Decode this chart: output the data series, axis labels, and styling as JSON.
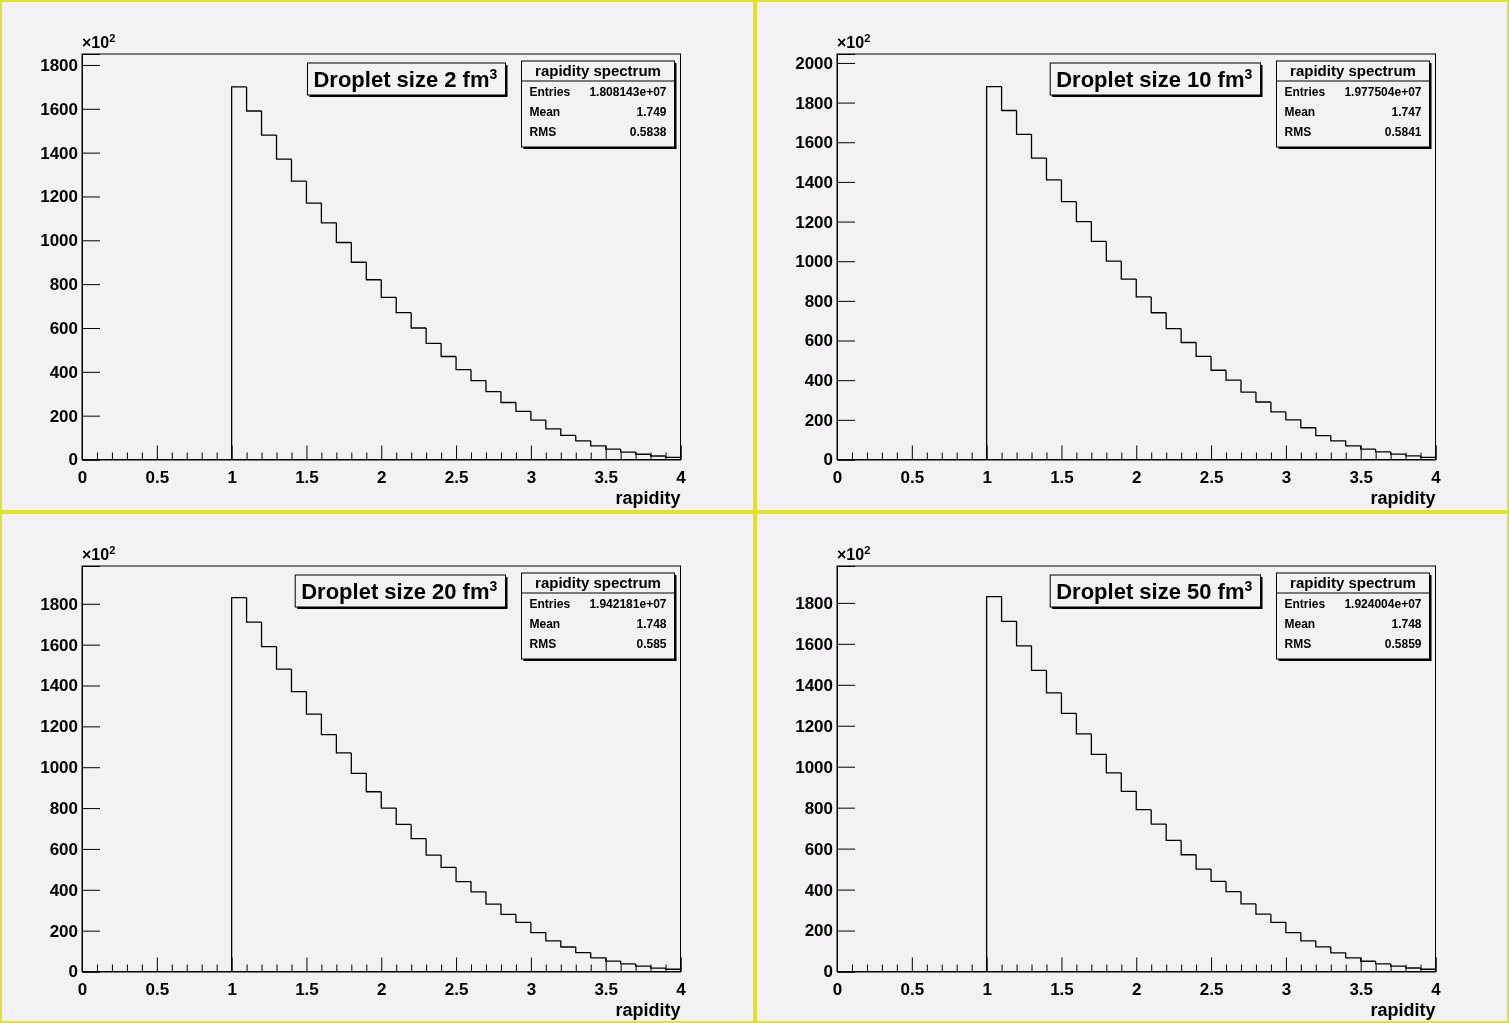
{
  "chart_data": [
    {
      "type": "histogram",
      "title": "Droplet size 2 fm$^{3}$",
      "xlabel": "rapidity",
      "bins": [
        1,
        1.1,
        1.2,
        1.3,
        1.4,
        1.5,
        1.6,
        1.7,
        1.8,
        1.9,
        2,
        2.1,
        2.2,
        2.3,
        2.4,
        2.5,
        2.6,
        2.7,
        2.8,
        2.9,
        3,
        3.1,
        3.2,
        3.3,
        3.4,
        3.5,
        3.6,
        3.7,
        3.8,
        3.9,
        4
      ],
      "series": [
        {
          "color": "#000000",
          "values": [
            1700,
            1590,
            1480,
            1370,
            1270,
            1170,
            1080,
            990,
            900,
            820,
            740,
            670,
            600,
            530,
            470,
            410,
            360,
            310,
            260,
            220,
            180,
            140,
            110,
            85,
            62,
            47,
            34,
            24,
            16,
            10
          ]
        }
      ],
      "xlim": [
        0,
        4
      ],
      "xticks": [
        0,
        {
          "value": 0.1,
          "label": null
        },
        {
          "value": 0.2,
          "label": null
        },
        {
          "value": 0.3,
          "label": null
        },
        {
          "value": 0.4,
          "label": null
        },
        0.5,
        {
          "value": 0.6,
          "label": null
        },
        {
          "value": 0.7,
          "label": null
        },
        {
          "value": 0.8,
          "label": null
        },
        {
          "value": 0.9,
          "label": null
        },
        1,
        {
          "value": 1.1,
          "label": null
        },
        {
          "value": 1.2,
          "label": null
        },
        {
          "value": 1.3,
          "label": null
        },
        {
          "value": 1.4,
          "label": null
        },
        1.5,
        {
          "value": 1.6,
          "label": null
        },
        {
          "value": 1.7,
          "label": null
        },
        {
          "value": 1.8,
          "label": null
        },
        {
          "value": 1.9,
          "label": null
        },
        2,
        {
          "value": 2.1,
          "label": null
        },
        {
          "value": 2.2,
          "label": null
        },
        {
          "value": 2.3,
          "label": null
        },
        {
          "value": 2.4,
          "label": null
        },
        2.5,
        {
          "value": 2.6,
          "label": null
        },
        {
          "value": 2.7,
          "label": null
        },
        {
          "value": 2.8,
          "label": null
        },
        {
          "value": 2.9,
          "label": null
        },
        3,
        {
          "value": 3.1,
          "label": null
        },
        {
          "value": 3.2,
          "label": null
        },
        {
          "value": 3.3,
          "label": null
        },
        {
          "value": 3.4,
          "label": null
        },
        3.5,
        {
          "value": 3.6,
          "label": null
        },
        {
          "value": 3.7,
          "label": null
        },
        {
          "value": 3.8,
          "label": null
        },
        {
          "value": 3.9,
          "label": null
        },
        4
      ],
      "ylim": [
        0,
        1850
      ],
      "yticks": [
        0,
        200,
        400,
        600,
        800,
        1000,
        1200,
        1400,
        1600,
        1800
      ],
      "annotations": [
        "×10$^{2}$",
        "rapidity spectrum",
        "Entries",
        "1.808143e+07",
        "Mean",
        "1.749",
        "RMS",
        "0.5838"
      ]
    },
    {
      "type": "histogram",
      "title": "Droplet size 10 fm$^{3}$",
      "xlabel": "rapidity",
      "bins": [
        1,
        1.1,
        1.2,
        1.3,
        1.4,
        1.5,
        1.6,
        1.7,
        1.8,
        1.9,
        2,
        2.1,
        2.2,
        2.3,
        2.4,
        2.5,
        2.6,
        2.7,
        2.8,
        2.9,
        3,
        3.1,
        3.2,
        3.3,
        3.4,
        3.5,
        3.6,
        3.7,
        3.8,
        3.9,
        4
      ],
      "series": [
        {
          "color": "#000000",
          "values": [
            1880,
            1760,
            1640,
            1520,
            1410,
            1300,
            1200,
            1100,
            1000,
            910,
            820,
            740,
            660,
            590,
            520,
            450,
            400,
            340,
            290,
            240,
            200,
            160,
            120,
            94,
            69,
            52,
            38,
            27,
            18,
            11
          ]
        }
      ],
      "xlim": [
        0,
        4
      ],
      "xticks": [
        0,
        {
          "value": 0.1,
          "label": null
        },
        {
          "value": 0.2,
          "label": null
        },
        {
          "value": 0.3,
          "label": null
        },
        {
          "value": 0.4,
          "label": null
        },
        0.5,
        {
          "value": 0.6,
          "label": null
        },
        {
          "value": 0.7,
          "label": null
        },
        {
          "value": 0.8,
          "label": null
        },
        {
          "value": 0.9,
          "label": null
        },
        1,
        {
          "value": 1.1,
          "label": null
        },
        {
          "value": 1.2,
          "label": null
        },
        {
          "value": 1.3,
          "label": null
        },
        {
          "value": 1.4,
          "label": null
        },
        1.5,
        {
          "value": 1.6,
          "label": null
        },
        {
          "value": 1.7,
          "label": null
        },
        {
          "value": 1.8,
          "label": null
        },
        {
          "value": 1.9,
          "label": null
        },
        2,
        {
          "value": 2.1,
          "label": null
        },
        {
          "value": 2.2,
          "label": null
        },
        {
          "value": 2.3,
          "label": null
        },
        {
          "value": 2.4,
          "label": null
        },
        2.5,
        {
          "value": 2.6,
          "label": null
        },
        {
          "value": 2.7,
          "label": null
        },
        {
          "value": 2.8,
          "label": null
        },
        {
          "value": 2.9,
          "label": null
        },
        3,
        {
          "value": 3.1,
          "label": null
        },
        {
          "value": 3.2,
          "label": null
        },
        {
          "value": 3.3,
          "label": null
        },
        {
          "value": 3.4,
          "label": null
        },
        3.5,
        {
          "value": 3.6,
          "label": null
        },
        {
          "value": 3.7,
          "label": null
        },
        {
          "value": 3.8,
          "label": null
        },
        {
          "value": 3.9,
          "label": null
        },
        4
      ],
      "ylim": [
        0,
        2045
      ],
      "yticks": [
        0,
        200,
        400,
        600,
        800,
        1000,
        1200,
        1400,
        1600,
        1800,
        2000
      ],
      "annotations": [
        "×10$^{2}$",
        "rapidity spectrum",
        "Entries",
        "1.977504e+07",
        "Mean",
        "1.747",
        "RMS",
        "0.5841"
      ]
    },
    {
      "type": "histogram",
      "title": "Droplet size 20 fm$^{3}$",
      "xlabel": "rapidity",
      "bins": [
        1,
        1.1,
        1.2,
        1.3,
        1.4,
        1.5,
        1.6,
        1.7,
        1.8,
        1.9,
        2,
        2.1,
        2.2,
        2.3,
        2.4,
        2.5,
        2.6,
        2.7,
        2.8,
        2.9,
        3,
        3.1,
        3.2,
        3.3,
        3.4,
        3.5,
        3.6,
        3.7,
        3.8,
        3.9,
        4
      ],
      "series": [
        {
          "color": "#000000",
          "values": [
            1830,
            1710,
            1590,
            1480,
            1370,
            1260,
            1160,
            1070,
            970,
            880,
            800,
            720,
            650,
            570,
            510,
            440,
            390,
            330,
            280,
            240,
            190,
            150,
            120,
            92,
            67,
            51,
            37,
            26,
            17,
            11
          ]
        }
      ],
      "xlim": [
        0,
        4
      ],
      "xticks": [
        0,
        {
          "value": 0.1,
          "label": null
        },
        {
          "value": 0.2,
          "label": null
        },
        {
          "value": 0.3,
          "label": null
        },
        {
          "value": 0.4,
          "label": null
        },
        0.5,
        {
          "value": 0.6,
          "label": null
        },
        {
          "value": 0.7,
          "label": null
        },
        {
          "value": 0.8,
          "label": null
        },
        {
          "value": 0.9,
          "label": null
        },
        1,
        {
          "value": 1.1,
          "label": null
        },
        {
          "value": 1.2,
          "label": null
        },
        {
          "value": 1.3,
          "label": null
        },
        {
          "value": 1.4,
          "label": null
        },
        1.5,
        {
          "value": 1.6,
          "label": null
        },
        {
          "value": 1.7,
          "label": null
        },
        {
          "value": 1.8,
          "label": null
        },
        {
          "value": 1.9,
          "label": null
        },
        2,
        {
          "value": 2.1,
          "label": null
        },
        {
          "value": 2.2,
          "label": null
        },
        {
          "value": 2.3,
          "label": null
        },
        {
          "value": 2.4,
          "label": null
        },
        2.5,
        {
          "value": 2.6,
          "label": null
        },
        {
          "value": 2.7,
          "label": null
        },
        {
          "value": 2.8,
          "label": null
        },
        {
          "value": 2.9,
          "label": null
        },
        3,
        {
          "value": 3.1,
          "label": null
        },
        {
          "value": 3.2,
          "label": null
        },
        {
          "value": 3.3,
          "label": null
        },
        {
          "value": 3.4,
          "label": null
        },
        3.5,
        {
          "value": 3.6,
          "label": null
        },
        {
          "value": 3.7,
          "label": null
        },
        {
          "value": 3.8,
          "label": null
        },
        {
          "value": 3.9,
          "label": null
        },
        4
      ],
      "ylim": [
        0,
        1985
      ],
      "yticks": [
        0,
        200,
        400,
        600,
        800,
        1000,
        1200,
        1400,
        1600,
        1800
      ],
      "annotations": [
        "×10$^{2}$",
        "rapidity spectrum",
        "Entries",
        "1.942181e+07",
        "Mean",
        "1.748",
        "RMS",
        "0.585"
      ]
    },
    {
      "type": "histogram",
      "title": "Droplet size 50 fm$^{3}$",
      "xlabel": "rapidity",
      "bins": [
        1,
        1.1,
        1.2,
        1.3,
        1.4,
        1.5,
        1.6,
        1.7,
        1.8,
        1.9,
        2,
        2.1,
        2.2,
        2.3,
        2.4,
        2.5,
        2.6,
        2.7,
        2.8,
        2.9,
        3,
        3.1,
        3.2,
        3.3,
        3.4,
        3.5,
        3.6,
        3.7,
        3.8,
        3.9,
        4
      ],
      "series": [
        {
          "color": "#000000",
          "values": [
            1830,
            1710,
            1590,
            1470,
            1360,
            1260,
            1160,
            1060,
            970,
            880,
            790,
            720,
            640,
            570,
            500,
            440,
            390,
            330,
            280,
            240,
            190,
            150,
            120,
            91,
            67,
            50,
            37,
            26,
            17,
            11
          ]
        }
      ],
      "xlim": [
        0,
        4
      ],
      "xticks": [
        0,
        {
          "value": 0.1,
          "label": null
        },
        {
          "value": 0.2,
          "label": null
        },
        {
          "value": 0.3,
          "label": null
        },
        {
          "value": 0.4,
          "label": null
        },
        0.5,
        {
          "value": 0.6,
          "label": null
        },
        {
          "value": 0.7,
          "label": null
        },
        {
          "value": 0.8,
          "label": null
        },
        {
          "value": 0.9,
          "label": null
        },
        1,
        {
          "value": 1.1,
          "label": null
        },
        {
          "value": 1.2,
          "label": null
        },
        {
          "value": 1.3,
          "label": null
        },
        {
          "value": 1.4,
          "label": null
        },
        1.5,
        {
          "value": 1.6,
          "label": null
        },
        {
          "value": 1.7,
          "label": null
        },
        {
          "value": 1.8,
          "label": null
        },
        {
          "value": 1.9,
          "label": null
        },
        2,
        {
          "value": 2.1,
          "label": null
        },
        {
          "value": 2.2,
          "label": null
        },
        {
          "value": 2.3,
          "label": null
        },
        {
          "value": 2.4,
          "label": null
        },
        2.5,
        {
          "value": 2.6,
          "label": null
        },
        {
          "value": 2.7,
          "label": null
        },
        {
          "value": 2.8,
          "label": null
        },
        {
          "value": 2.9,
          "label": null
        },
        3,
        {
          "value": 3.1,
          "label": null
        },
        {
          "value": 3.2,
          "label": null
        },
        {
          "value": 3.3,
          "label": null
        },
        {
          "value": 3.4,
          "label": null
        },
        3.5,
        {
          "value": 3.6,
          "label": null
        },
        {
          "value": 3.7,
          "label": null
        },
        {
          "value": 3.8,
          "label": null
        },
        {
          "value": 3.9,
          "label": null
        },
        4
      ],
      "ylim": [
        0,
        1980
      ],
      "yticks": [
        0,
        200,
        400,
        600,
        800,
        1000,
        1200,
        1400,
        1600,
        1800
      ],
      "annotations": [
        "×10$^{2}$",
        "rapidity spectrum",
        "Entries",
        "1.924004e+07",
        "Mean",
        "1.748",
        "RMS",
        "0.5859"
      ]
    }
  ]
}
